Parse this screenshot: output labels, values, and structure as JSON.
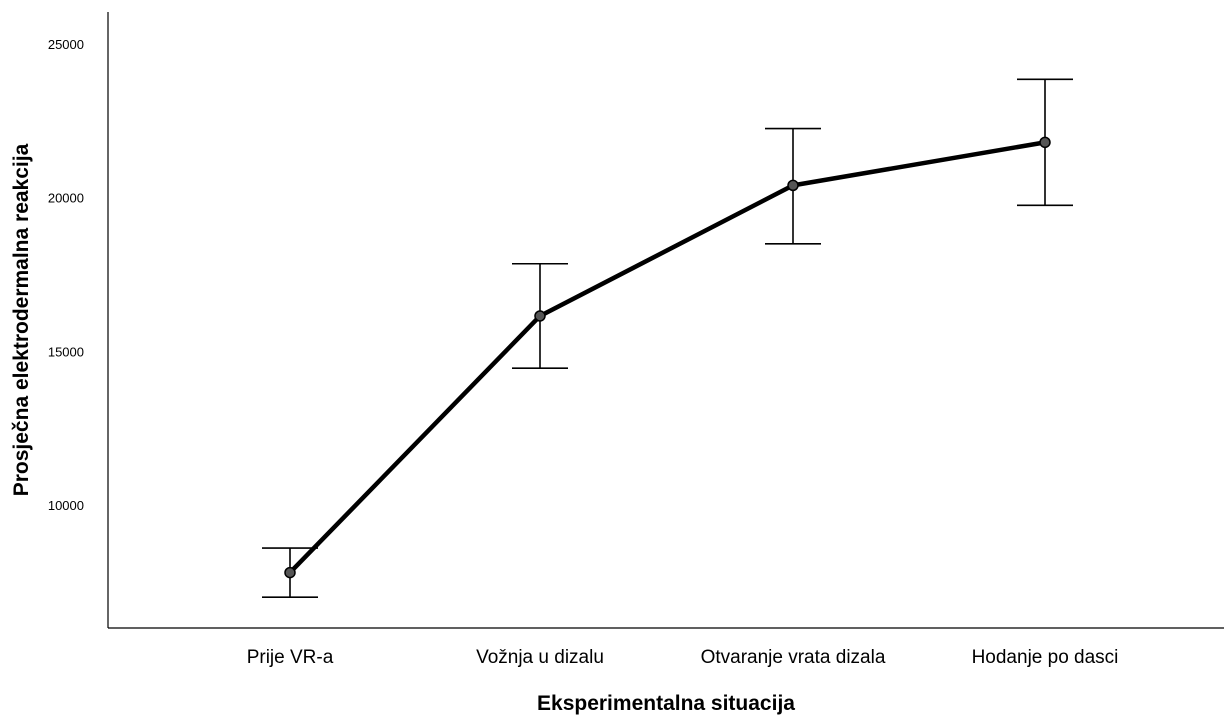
{
  "chart_data": {
    "type": "line",
    "title": "",
    "xlabel": "Eksperimentalna situacija",
    "ylabel": "Prosječna elektrodermalna reakcija",
    "categories": [
      "Prije VR-a",
      "Vožnja u dizalu",
      "Otvaranje vrata dizala",
      "Hodanje po dasci"
    ],
    "series": [
      {
        "values": [
          7800,
          16150,
          20400,
          21800
        ],
        "error_low": [
          7000,
          14450,
          18500,
          19750
        ],
        "error_high": [
          8600,
          17850,
          22250,
          23850
        ]
      }
    ],
    "yticks": [
      10000,
      15000,
      20000,
      25000
    ],
    "ytick_labels": [
      "10000",
      "15000",
      "20000",
      "25000"
    ],
    "ylim": [
      6000,
      26000
    ],
    "grid": false,
    "legend": "none",
    "colors": {
      "line": "#000000",
      "marker": "#555555",
      "axis": "#000000"
    }
  }
}
